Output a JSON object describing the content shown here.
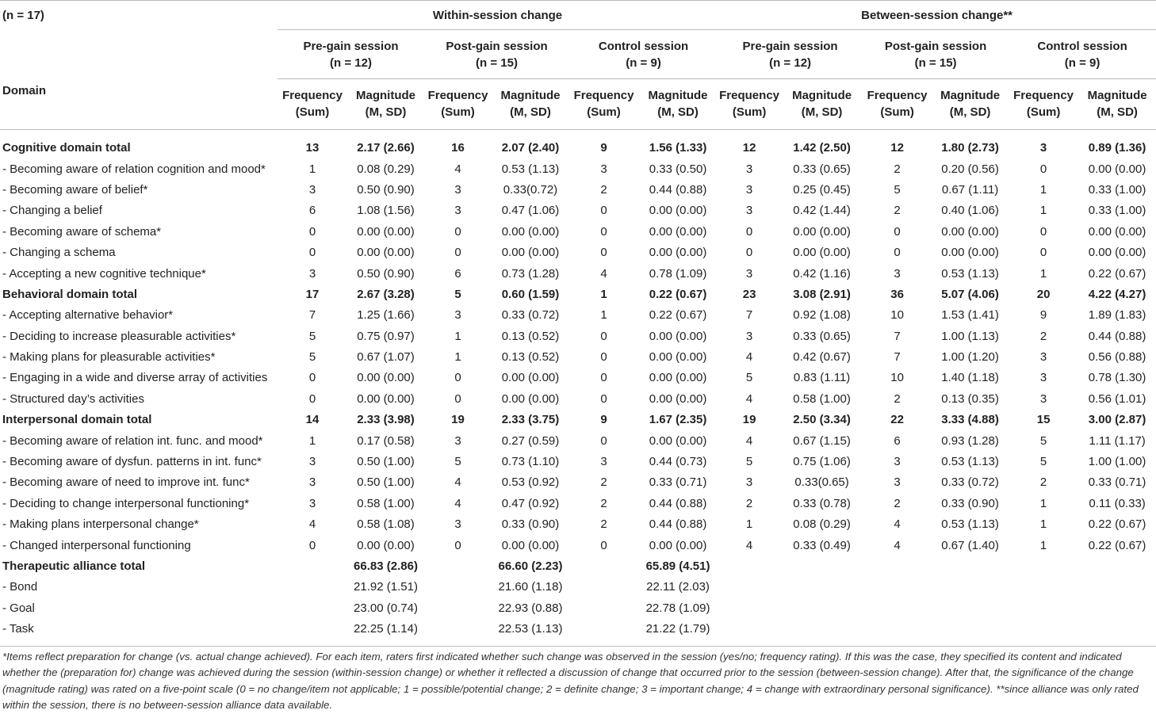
{
  "table": {
    "n_label": "(n = 17)",
    "domain_header": "Domain",
    "group_headers": [
      "Within-session change",
      "Between-session change**"
    ],
    "sessions": [
      {
        "name": "Pre-gain session",
        "n": "(n = 12)"
      },
      {
        "name": "Post-gain session",
        "n": "(n = 15)"
      },
      {
        "name": "Control session",
        "n": "(n = 9)"
      },
      {
        "name": "Pre-gain session",
        "n": "(n = 12)"
      },
      {
        "name": "Post-gain session",
        "n": "(n = 15)"
      },
      {
        "name": "Control session",
        "n": "(n = 9)"
      }
    ],
    "columns": [
      {
        "label": "Frequency",
        "sub": "(Sum)"
      },
      {
        "label": "Magnitude",
        "sub": "(M, SD)"
      },
      {
        "label": "Frequency",
        "sub": "(Sum)"
      },
      {
        "label": "Magnitude",
        "sub": "(M, SD)"
      },
      {
        "label": "Frequency",
        "sub": "(Sum)"
      },
      {
        "label": "Magnitude",
        "sub": "(M, SD)"
      },
      {
        "label": "Frequency",
        "sub": "(Sum)"
      },
      {
        "label": "Magnitude",
        "sub": "(M, SD)"
      },
      {
        "label": "Frequency",
        "sub": "(Sum)"
      },
      {
        "label": "Magnitude",
        "sub": "(M, SD)"
      },
      {
        "label": "Frequency",
        "sub": "(Sum)"
      },
      {
        "label": "Magnitude",
        "sub": "(M, SD)"
      }
    ],
    "rows": [
      {
        "label": "Cognitive domain total",
        "total": true,
        "cells": [
          13,
          "2.17 (2.66)",
          16,
          "2.07 (2.40)",
          9,
          "1.56 (1.33)",
          12,
          "1.42 (2.50)",
          12,
          "1.80 (2.73)",
          3,
          "0.89 (1.36)"
        ]
      },
      {
        "label": "- Becoming aware of relation cognition and mood*",
        "total": false,
        "cells": [
          1,
          "0.08 (0.29)",
          4,
          "0.53 (1.13)",
          3,
          "0.33 (0.50)",
          3,
          "0.33 (0.65)",
          2,
          "0.20 (0.56)",
          0,
          "0.00 (0.00)"
        ]
      },
      {
        "label": "- Becoming aware of belief*",
        "total": false,
        "cells": [
          3,
          "0.50 (0.90)",
          3,
          "0.33(0.72)",
          2,
          "0.44 (0.88)",
          3,
          "0.25 (0.45)",
          5,
          "0.67 (1.11)",
          1,
          "0.33 (1.00)"
        ]
      },
      {
        "label": "- Changing a belief",
        "total": false,
        "cells": [
          6,
          "1.08 (1.56)",
          3,
          "0.47 (1.06)",
          0,
          "0.00 (0.00)",
          3,
          "0.42 (1.44)",
          2,
          "0.40 (1.06)",
          1,
          "0.33 (1.00)"
        ]
      },
      {
        "label": "- Becoming aware of schema*",
        "total": false,
        "cells": [
          0,
          "0.00 (0.00)",
          0,
          "0.00 (0.00)",
          0,
          "0.00 (0.00)",
          0,
          "0.00 (0.00)",
          0,
          "0.00 (0.00)",
          0,
          "0.00 (0.00)"
        ]
      },
      {
        "label": "- Changing a schema",
        "total": false,
        "cells": [
          0,
          "0.00 (0.00)",
          0,
          "0.00 (0.00)",
          0,
          "0.00 (0.00)",
          0,
          "0.00 (0.00)",
          0,
          "0.00 (0.00)",
          0,
          "0.00 (0.00)"
        ]
      },
      {
        "label": "- Accepting a new cognitive technique*",
        "total": false,
        "cells": [
          3,
          "0.50 (0.90)",
          6,
          "0.73 (1.28)",
          4,
          "0.78 (1.09)",
          3,
          "0.42 (1.16)",
          3,
          "0.53 (1.13)",
          1,
          "0.22 (0.67)"
        ]
      },
      {
        "label": "Behavioral domain total",
        "total": true,
        "cells": [
          17,
          "2.67 (3.28)",
          5,
          "0.60 (1.59)",
          1,
          "0.22 (0.67)",
          23,
          "3.08 (2.91)",
          36,
          "5.07 (4.06)",
          20,
          "4.22 (4.27)"
        ]
      },
      {
        "label": "- Accepting alternative behavior*",
        "total": false,
        "cells": [
          7,
          "1.25 (1.66)",
          3,
          "0.33 (0.72)",
          1,
          "0.22 (0.67)",
          7,
          "0.92 (1.08)",
          10,
          "1.53 (1.41)",
          9,
          "1.89 (1.83)"
        ]
      },
      {
        "label": "- Deciding to increase pleasurable activities*",
        "total": false,
        "cells": [
          5,
          "0.75 (0.97)",
          1,
          "0.13 (0.52)",
          0,
          "0.00 (0.00)",
          3,
          "0.33 (0.65)",
          7,
          "1.00 (1.13)",
          2,
          "0.44 (0.88)"
        ]
      },
      {
        "label": "- Making plans for pleasurable activities*",
        "total": false,
        "cells": [
          5,
          "0.67 (1.07)",
          1,
          "0.13 (0.52)",
          0,
          "0.00 (0.00)",
          4,
          "0.42 (0.67)",
          7,
          "1.00 (1.20)",
          3,
          "0.56 (0.88)"
        ]
      },
      {
        "label": "- Engaging in a wide and diverse array of activities",
        "total": false,
        "cells": [
          0,
          "0.00 (0.00)",
          0,
          "0.00 (0.00)",
          0,
          "0.00 (0.00)",
          5,
          "0.83 (1.11)",
          10,
          "1.40 (1.18)",
          3,
          "0.78 (1.30)"
        ]
      },
      {
        "label": "- Structured day’s activities",
        "total": false,
        "cells": [
          0,
          "0.00 (0.00)",
          0,
          "0.00 (0.00)",
          0,
          "0.00 (0.00)",
          4,
          "0.58 (1.00)",
          2,
          "0.13 (0.35)",
          3,
          "0.56 (1.01)"
        ]
      },
      {
        "label": "Interpersonal domain total",
        "total": true,
        "cells": [
          14,
          "2.33 (3.98)",
          19,
          "2.33 (3.75)",
          9,
          "1.67 (2.35)",
          19,
          "2.50 (3.34)",
          22,
          "3.33 (4.88)",
          15,
          "3.00 (2.87)"
        ]
      },
      {
        "label": "- Becoming aware of relation int. func. and mood*",
        "total": false,
        "cells": [
          1,
          "0.17 (0.58)",
          3,
          "0.27 (0.59)",
          0,
          "0.00 (0.00)",
          4,
          "0.67 (1.15)",
          6,
          "0.93 (1.28)",
          5,
          "1.11 (1.17)"
        ]
      },
      {
        "label": "- Becoming aware of dysfun. patterns in int. func*",
        "total": false,
        "cells": [
          3,
          "0.50 (1.00)",
          5,
          "0.73 (1.10)",
          3,
          "0.44 (0.73)",
          5,
          "0.75 (1.06)",
          3,
          "0.53 (1.13)",
          5,
          "1.00 (1.00)"
        ]
      },
      {
        "label": "- Becoming aware of need to improve int. func*",
        "total": false,
        "cells": [
          3,
          "0.50 (1.00)",
          4,
          "0.53 (0.92)",
          2,
          "0.33 (0.71)",
          3,
          "0.33(0.65)",
          3,
          "0.33 (0.72)",
          2,
          "0.33 (0.71)"
        ]
      },
      {
        "label": "- Deciding to change interpersonal functioning*",
        "total": false,
        "cells": [
          3,
          "0.58 (1.00)",
          4,
          "0.47 (0.92)",
          2,
          "0.44 (0.88)",
          2,
          "0.33 (0.78)",
          2,
          "0.33 (0.90)",
          1,
          "0.11 (0.33)"
        ]
      },
      {
        "label": "- Making plans interpersonal change*",
        "total": false,
        "cells": [
          4,
          "0.58 (1.08)",
          3,
          "0.33 (0.90)",
          2,
          "0.44 (0.88)",
          1,
          "0.08 (0.29)",
          4,
          "0.53 (1.13)",
          1,
          "0.22 (0.67)"
        ]
      },
      {
        "label": "- Changed interpersonal functioning",
        "total": false,
        "cells": [
          0,
          "0.00 (0.00)",
          0,
          "0.00 (0.00)",
          0,
          "0.00 (0.00)",
          4,
          "0.33 (0.49)",
          4,
          "0.67 (1.40)",
          1,
          "0.22 (0.67)"
        ]
      },
      {
        "label": "Therapeutic alliance total",
        "total": true,
        "cells": [
          null,
          "66.83 (2.86)",
          null,
          "66.60 (2.23)",
          null,
          "65.89 (4.51)",
          null,
          null,
          null,
          null,
          null,
          null
        ]
      },
      {
        "label": "- Bond",
        "total": false,
        "cells": [
          null,
          "21.92 (1.51)",
          null,
          "21.60 (1.18)",
          null,
          "22.11 (2.03)",
          null,
          null,
          null,
          null,
          null,
          null
        ]
      },
      {
        "label": "- Goal",
        "total": false,
        "cells": [
          null,
          "23.00 (0.74)",
          null,
          "22.93 (0.88)",
          null,
          "22.78 (1.09)",
          null,
          null,
          null,
          null,
          null,
          null
        ]
      },
      {
        "label": "- Task",
        "total": false,
        "cells": [
          null,
          "22.25 (1.14)",
          null,
          "22.53 (1.13)",
          null,
          "21.22 (1.79)",
          null,
          null,
          null,
          null,
          null,
          null
        ]
      }
    ],
    "footnote": "*Items reflect preparation for change (vs. actual change achieved). For each item, raters first indicated whether such change was observed in the session (yes/no; frequency rating). If this was the case, they specified its content and indicated whether the (preparation for) change was achieved during the session (within-session change) or whether it reflected a discussion of change that occurred prior to the session (between-session change). After that, the significance of the change (magnitude rating) was rated on a five-point scale (0 = no change/item not applicable; 1 = possible/potential change; 2 = definite change; 3 = important change; 4 = change with extraordinary personal significance). **since alliance was only rated within the session, there is no between-session alliance data available."
  }
}
